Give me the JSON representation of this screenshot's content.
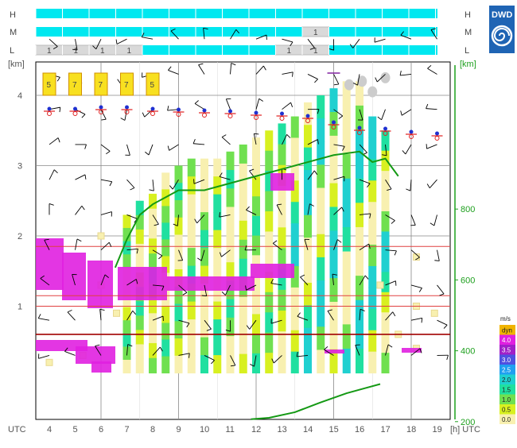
{
  "chart_data": {
    "type": "meteogram",
    "time_axis": {
      "label": "UTC",
      "unit_label": "[h] UTC",
      "hours": [
        "4",
        "5",
        "6",
        "7",
        "8",
        "9",
        "10",
        "11",
        "12",
        "13",
        "14",
        "15",
        "16",
        "17",
        "18",
        "19"
      ]
    },
    "left_axis": {
      "unit_label": "[km]",
      "ticks": [
        "1",
        "2",
        "3",
        "4"
      ],
      "range": [
        0,
        5
      ]
    },
    "right_axis": {
      "unit_label": "[km]",
      "ticks": [
        "200",
        "400",
        "600",
        "800"
      ],
      "range": [
        0,
        1000
      ]
    },
    "cloud_cover": {
      "rows": [
        {
          "label": "H",
          "cells": [
            "",
            "",
            "",
            "",
            "",
            "",
            "",
            "",
            "",
            "",
            "",
            "",
            "",
            "",
            "",
            ""
          ]
        },
        {
          "label": "M",
          "cells": [
            "",
            "",
            "",
            "",
            "",
            "",
            "",
            "",
            "",
            "",
            "1",
            "",
            "",
            "",
            "",
            ""
          ]
        },
        {
          "label": "L",
          "cells": [
            "1",
            "1",
            "1",
            "1",
            "",
            "",
            "",
            "",
            "",
            "1",
            "1",
            "",
            "",
            "",
            "",
            ""
          ]
        }
      ]
    },
    "label_boxes": [
      "5",
      "7",
      "7",
      "7",
      "5"
    ],
    "legend": {
      "title": "m/s",
      "entries": [
        {
          "label": "dyn",
          "color": "#f0b400"
        },
        {
          "label": "4.0",
          "color": "#e020e0"
        },
        {
          "label": "3.5",
          "color": "#a020c8"
        },
        {
          "label": "3.0",
          "color": "#5050e0"
        },
        {
          "label": "2.5",
          "color": "#20a0f0"
        },
        {
          "label": "2.0",
          "color": "#20d0d0"
        },
        {
          "label": "1.5",
          "color": "#20e0a0"
        },
        {
          "label": "1.0",
          "color": "#70e050"
        },
        {
          "label": "0.5",
          "color": "#d8f020"
        },
        {
          "label": "0.0",
          "color": "#f8f0b0"
        }
      ]
    },
    "boundary_layer_line": [
      {
        "hour": 6.55,
        "km": 1.55
      },
      {
        "hour": 7.0,
        "km": 1.95
      },
      {
        "hour": 7.5,
        "km": 2.3
      },
      {
        "hour": 8.0,
        "km": 2.45
      },
      {
        "hour": 8.5,
        "km": 2.55
      },
      {
        "hour": 9.0,
        "km": 2.65
      },
      {
        "hour": 10.0,
        "km": 2.65
      },
      {
        "hour": 11.0,
        "km": 2.75
      },
      {
        "hour": 12.0,
        "km": 2.85
      },
      {
        "hour": 13.0,
        "km": 2.95
      },
      {
        "hour": 14.0,
        "km": 3.05
      },
      {
        "hour": 15.0,
        "km": 3.15
      },
      {
        "hour": 16.0,
        "km": 3.2
      },
      {
        "hour": 16.5,
        "km": 3.05
      },
      {
        "hour": 17.0,
        "km": 3.1
      },
      {
        "hour": 17.5,
        "km": 2.85
      }
    ],
    "ground_curve": [
      {
        "hour": 11.8,
        "km": -0.02
      },
      {
        "hour": 12.5,
        "km": 0.0
      },
      {
        "hour": 13.5,
        "km": 0.08
      },
      {
        "hour": 14.5,
        "km": 0.22
      },
      {
        "hour": 15.5,
        "km": 0.35
      },
      {
        "hour": 16.2,
        "km": 0.42
      },
      {
        "hour": 16.8,
        "km": 0.48
      }
    ],
    "horizontal_lines_km": [
      0.6,
      1.0,
      1.15,
      1.85
    ],
    "updraft_columns": [
      {
        "hour": 7,
        "top_km": 2.3
      },
      {
        "hour": 7.5,
        "top_km": 2.5
      },
      {
        "hour": 8,
        "top_km": 2.6
      },
      {
        "hour": 8.5,
        "top_km": 2.9
      },
      {
        "hour": 9,
        "top_km": 3.0
      },
      {
        "hour": 9.5,
        "top_km": 3.1
      },
      {
        "hour": 10,
        "top_km": 3.1
      },
      {
        "hour": 10.5,
        "top_km": 3.1
      },
      {
        "hour": 11,
        "top_km": 3.2
      },
      {
        "hour": 11.5,
        "top_km": 3.3
      },
      {
        "hour": 12,
        "top_km": 3.4
      },
      {
        "hour": 12.5,
        "top_km": 3.5
      },
      {
        "hour": 13,
        "top_km": 3.6
      },
      {
        "hour": 13.5,
        "top_km": 3.7
      },
      {
        "hour": 14,
        "top_km": 3.9
      },
      {
        "hour": 14.5,
        "top_km": 4.0
      },
      {
        "hour": 15,
        "top_km": 4.1
      },
      {
        "hour": 15.5,
        "top_km": 4.2
      },
      {
        "hour": 16,
        "top_km": 4.2
      },
      {
        "hour": 16.5,
        "top_km": 3.7
      },
      {
        "hour": 17,
        "top_km": 3.5
      }
    ]
  },
  "logo": {
    "text": "DWD"
  }
}
